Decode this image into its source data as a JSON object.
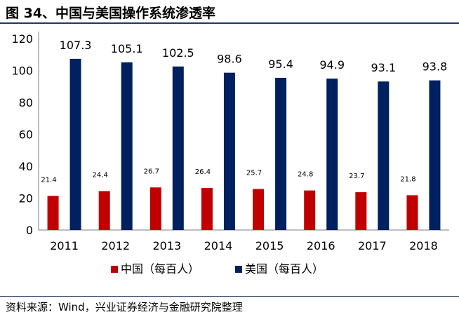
{
  "figure_title": "图 34、中国与美国操作系统渗透率",
  "source": "资料来源：Wind，兴业证券经济与金融研究院整理",
  "colors": {
    "china": "#c00000",
    "usa": "#002060",
    "rule": "#1f3864"
  },
  "chart_data": {
    "type": "bar",
    "categories": [
      "2011",
      "2012",
      "2013",
      "2014",
      "2015",
      "2016",
      "2017",
      "2018"
    ],
    "series": [
      {
        "name": "中国（每百人）",
        "values": [
          21.4,
          24.4,
          26.7,
          26.4,
          25.7,
          24.8,
          23.7,
          21.8
        ],
        "labels": [
          "21.4",
          "24.4",
          "26.7",
          "26.4",
          "25.7",
          "24.8",
          "23.7",
          "21.8"
        ]
      },
      {
        "name": "美国（每百人）",
        "values": [
          107.3,
          105.1,
          102.5,
          98.6,
          95.4,
          94.9,
          93.1,
          93.8
        ],
        "labels": [
          "107.3",
          "105.1",
          "102.5",
          "98.6",
          "95.4",
          "94.9",
          "93.1",
          "93.8"
        ]
      }
    ],
    "yticks": [
      "0",
      "20",
      "40",
      "60",
      "80",
      "100",
      "120"
    ],
    "ylim": [
      0,
      120
    ],
    "grid": false,
    "legend_position": "bottom"
  }
}
